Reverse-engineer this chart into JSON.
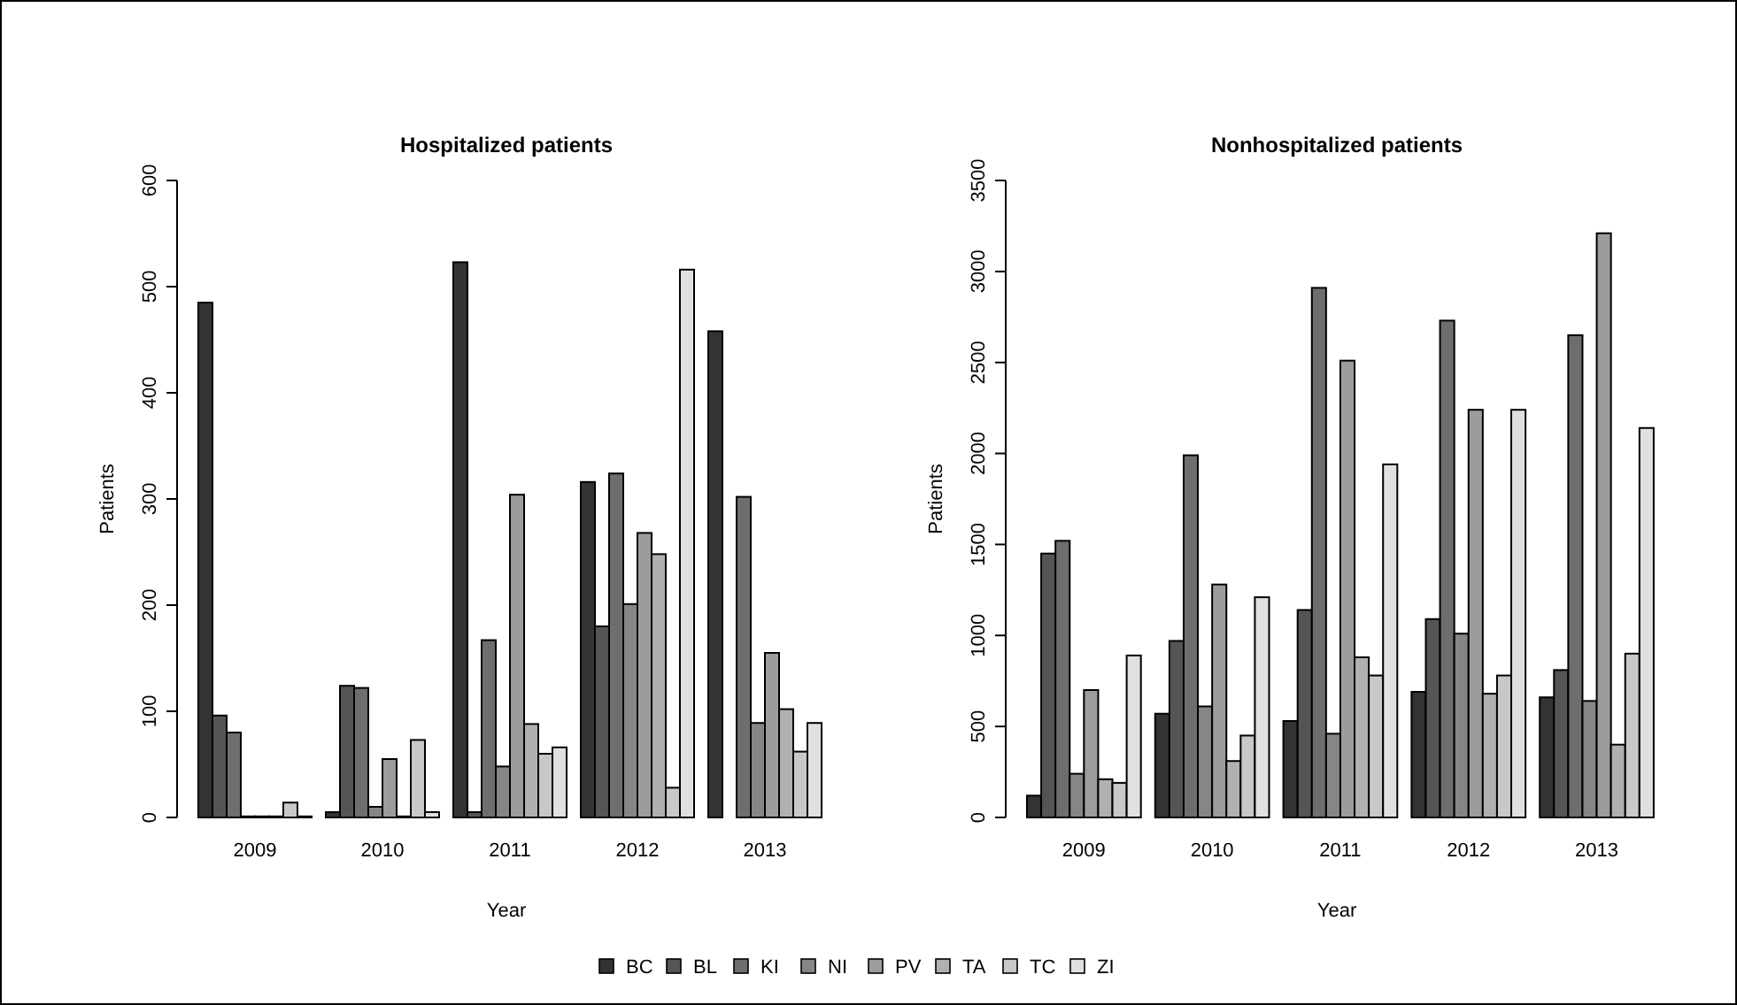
{
  "chart_data": [
    {
      "type": "bar",
      "title": "Hospitalized patients",
      "xlabel": "Year",
      "ylabel": "Patients",
      "categories": [
        "2009",
        "2010",
        "2011",
        "2012",
        "2013"
      ],
      "ylim": [
        0,
        600
      ],
      "yticks": [
        0,
        100,
        200,
        300,
        400,
        500,
        600
      ],
      "series": [
        {
          "color": "#333333",
          "values": [
            485,
            5,
            523,
            316,
            458
          ]
        },
        {
          "color": "#555555",
          "values": [
            96,
            124,
            5,
            180,
            0
          ]
        },
        {
          "color": "#6e6e6e",
          "values": [
            80,
            122,
            167,
            324,
            302
          ]
        },
        {
          "color": "#868686",
          "values": [
            1,
            10,
            48,
            201,
            89
          ]
        },
        {
          "color": "#9c9c9c",
          "values": [
            1,
            55,
            304,
            268,
            155
          ]
        },
        {
          "color": "#b0b0b0",
          "values": [
            1,
            1,
            88,
            248,
            102
          ]
        },
        {
          "color": "#c8c8c8",
          "values": [
            14,
            73,
            60,
            28,
            62
          ]
        },
        {
          "color": "#e0e0e0",
          "values": [
            1,
            5,
            66,
            516,
            89
          ]
        }
      ]
    },
    {
      "type": "bar",
      "title": "Nonhospitalized patients",
      "xlabel": "Year",
      "ylabel": "Patients",
      "categories": [
        "2009",
        "2010",
        "2011",
        "2012",
        "2013"
      ],
      "ylim": [
        0,
        3500
      ],
      "yticks": [
        0,
        500,
        1000,
        1500,
        2000,
        2500,
        3000,
        3500
      ],
      "legend": "bottom",
      "series": [
        {
          "name": "BC",
          "color": "#333333",
          "values": [
            120,
            570,
            530,
            690,
            660
          ]
        },
        {
          "name": "BL",
          "color": "#555555",
          "values": [
            1450,
            970,
            1140,
            1090,
            810
          ]
        },
        {
          "name": "KI",
          "color": "#6e6e6e",
          "values": [
            1520,
            1990,
            2910,
            2730,
            2650
          ]
        },
        {
          "name": "NI",
          "color": "#868686",
          "values": [
            240,
            610,
            460,
            1010,
            640
          ]
        },
        {
          "name": "PV",
          "color": "#9c9c9c",
          "values": [
            700,
            1280,
            2510,
            2240,
            3210
          ]
        },
        {
          "name": "TA",
          "color": "#b0b0b0",
          "values": [
            210,
            310,
            880,
            680,
            400
          ]
        },
        {
          "name": "TC",
          "color": "#c8c8c8",
          "values": [
            190,
            450,
            780,
            780,
            900
          ]
        },
        {
          "name": "ZI",
          "color": "#e0e0e0",
          "values": [
            890,
            1210,
            1940,
            2240,
            2140
          ]
        }
      ]
    }
  ]
}
